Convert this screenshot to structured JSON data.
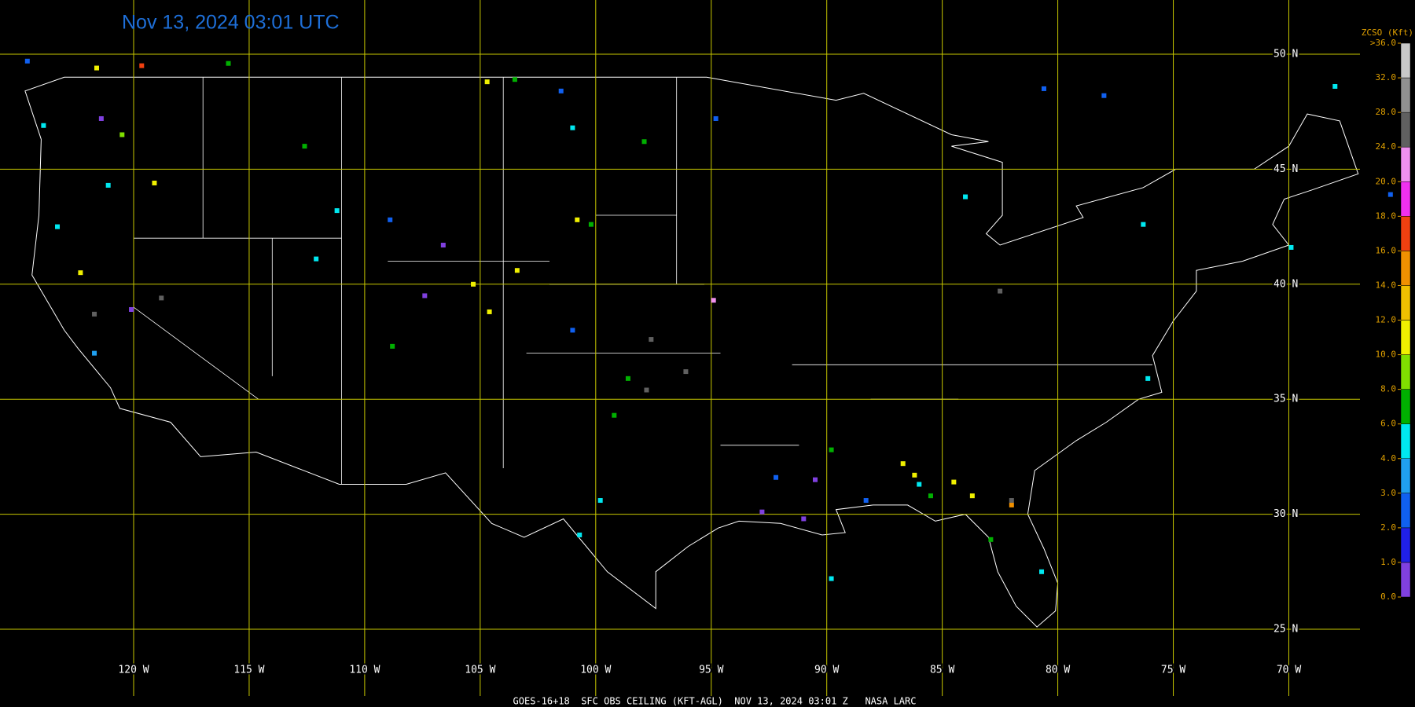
{
  "title": "Nov 13, 2024 03:01 UTC",
  "footer": "GOES-16+18  SFC OBS CEILING (KFT-AGL)  NOV 13, 2024 03:01 Z   NASA LARC",
  "grid": {
    "lat": [
      {
        "value": 50,
        "label": "50 N"
      },
      {
        "value": 45,
        "label": "45 N"
      },
      {
        "value": 40,
        "label": "40 N"
      },
      {
        "value": 35,
        "label": "35 N"
      },
      {
        "value": 30,
        "label": "30 N"
      },
      {
        "value": 25,
        "label": "25 N"
      }
    ],
    "lon": [
      {
        "value": -120,
        "label": "120 W"
      },
      {
        "value": -115,
        "label": "115 W"
      },
      {
        "value": -110,
        "label": "110 W"
      },
      {
        "value": -105,
        "label": "105 W"
      },
      {
        "value": -100,
        "label": "100 W"
      },
      {
        "value": -95,
        "label": "95 W"
      },
      {
        "value": -90,
        "label": "90 W"
      },
      {
        "value": -85,
        "label": "85 W"
      },
      {
        "value": -80,
        "label": "80 W"
      },
      {
        "value": -75,
        "label": "75 W"
      },
      {
        "value": -70,
        "label": "70 W"
      }
    ]
  },
  "colorbar": {
    "title": "ZCSO (Kft)",
    "ticks": [
      {
        "value": 36,
        "label": ">36.0"
      },
      {
        "value": 32,
        "label": "32.0"
      },
      {
        "value": 28,
        "label": "28.0"
      },
      {
        "value": 24,
        "label": "24.0"
      },
      {
        "value": 20,
        "label": "20.0"
      },
      {
        "value": 18,
        "label": "18.0"
      },
      {
        "value": 16,
        "label": "16.0"
      },
      {
        "value": 14,
        "label": "14.0"
      },
      {
        "value": 12,
        "label": "12.0"
      },
      {
        "value": 10,
        "label": "10.0"
      },
      {
        "value": 8,
        "label": "8.0"
      },
      {
        "value": 6,
        "label": "6.0"
      },
      {
        "value": 4,
        "label": "4.0"
      },
      {
        "value": 3,
        "label": "3.0"
      },
      {
        "value": 2,
        "label": "2.0"
      },
      {
        "value": 1,
        "label": "1.0"
      },
      {
        "value": 0,
        "label": "0.0"
      }
    ],
    "colors": [
      "#8040e0",
      "#2020e8",
      "#1060f0",
      "#20a0f0",
      "#00e8f0",
      "#00b000",
      "#80e000",
      "#f0f000",
      "#f0c000",
      "#f09000",
      "#f04010",
      "#f030f0",
      "#f090f0",
      "#606060",
      "#909090",
      "#c8c8c8"
    ]
  },
  "stations": [
    {
      "lon": -119.65,
      "lat": 49.5,
      "ceiling": 17
    },
    {
      "lon": -121.6,
      "lat": 49.4,
      "ceiling": 11
    },
    {
      "lon": -124.6,
      "lat": 49.7,
      "ceiling": 2.5
    },
    {
      "lon": -123.9,
      "lat": 46.9,
      "ceiling": 5
    },
    {
      "lon": -121.4,
      "lat": 47.2,
      "ceiling": 0.5
    },
    {
      "lon": -120.5,
      "lat": 46.5,
      "ceiling": 9
    },
    {
      "lon": -119.1,
      "lat": 44.4,
      "ceiling": 11
    },
    {
      "lon": -121.1,
      "lat": 44.3,
      "ceiling": 5
    },
    {
      "lon": -123.3,
      "lat": 42.5,
      "ceiling": 5
    },
    {
      "lon": -122.3,
      "lat": 40.5,
      "ceiling": 11
    },
    {
      "lon": -121.7,
      "lat": 38.7,
      "ceiling": 26
    },
    {
      "lon": -118.8,
      "lat": 39.4,
      "ceiling": 26
    },
    {
      "lon": -120.1,
      "lat": 38.9,
      "ceiling": 0.5
    },
    {
      "lon": -121.7,
      "lat": 37.0,
      "ceiling": 3
    },
    {
      "lon": -115.9,
      "lat": 49.6,
      "ceiling": 7
    },
    {
      "lon": -112.6,
      "lat": 46.0,
      "ceiling": 7
    },
    {
      "lon": -111.2,
      "lat": 43.2,
      "ceiling": 5
    },
    {
      "lon": -112.1,
      "lat": 41.1,
      "ceiling": 5
    },
    {
      "lon": -106.6,
      "lat": 41.7,
      "ceiling": 0.5
    },
    {
      "lon": -108.9,
      "lat": 42.8,
      "ceiling": 2.5
    },
    {
      "lon": -107.4,
      "lat": 39.5,
      "ceiling": 0.5
    },
    {
      "lon": -105.3,
      "lat": 40.0,
      "ceiling": 11
    },
    {
      "lon": -104.6,
      "lat": 38.8,
      "ceiling": 11
    },
    {
      "lon": -103.4,
      "lat": 40.6,
      "ceiling": 11
    },
    {
      "lon": -108.8,
      "lat": 37.3,
      "ceiling": 7
    },
    {
      "lon": -104.7,
      "lat": 48.8,
      "ceiling": 11
    },
    {
      "lon": -103.5,
      "lat": 48.9,
      "ceiling": 7
    },
    {
      "lon": -101.5,
      "lat": 48.4,
      "ceiling": 2.5
    },
    {
      "lon": -101.0,
      "lat": 46.8,
      "ceiling": 5
    },
    {
      "lon": -97.9,
      "lat": 46.2,
      "ceiling": 7
    },
    {
      "lon": -100.8,
      "lat": 42.8,
      "ceiling": 11
    },
    {
      "lon": -100.2,
      "lat": 42.6,
      "ceiling": 7
    },
    {
      "lon": -97.6,
      "lat": 37.6,
      "ceiling": 26
    },
    {
      "lon": -101.0,
      "lat": 38.0,
      "ceiling": 2.5
    },
    {
      "lon": -98.6,
      "lat": 35.9,
      "ceiling": 7
    },
    {
      "lon": -97.8,
      "lat": 35.4,
      "ceiling": 26
    },
    {
      "lon": -96.1,
      "lat": 36.2,
      "ceiling": 26
    },
    {
      "lon": -99.2,
      "lat": 34.3,
      "ceiling": 7
    },
    {
      "lon": -99.8,
      "lat": 30.6,
      "ceiling": 5
    },
    {
      "lon": -100.7,
      "lat": 29.1,
      "ceiling": 5
    },
    {
      "lon": -94.9,
      "lat": 39.3,
      "ceiling": 22
    },
    {
      "lon": -94.8,
      "lat": 47.2,
      "ceiling": 2.5
    },
    {
      "lon": -80.6,
      "lat": 48.5,
      "ceiling": 2.5
    },
    {
      "lon": -78.0,
      "lat": 48.2,
      "ceiling": 2.5
    },
    {
      "lon": -84.0,
      "lat": 43.8,
      "ceiling": 5
    },
    {
      "lon": -82.5,
      "lat": 39.7,
      "ceiling": 26
    },
    {
      "lon": -76.3,
      "lat": 42.6,
      "ceiling": 5
    },
    {
      "lon": -69.9,
      "lat": 41.6,
      "ceiling": 5
    },
    {
      "lon": -68.0,
      "lat": 48.6,
      "ceiling": 5
    },
    {
      "lon": -65.6,
      "lat": 43.9,
      "ceiling": 2.5
    },
    {
      "lon": -76.1,
      "lat": 35.9,
      "ceiling": 5
    },
    {
      "lon": -92.8,
      "lat": 30.1,
      "ceiling": 0.5
    },
    {
      "lon": -92.2,
      "lat": 31.6,
      "ceiling": 2.5
    },
    {
      "lon": -89.8,
      "lat": 32.8,
      "ceiling": 7
    },
    {
      "lon": -90.5,
      "lat": 31.5,
      "ceiling": 0.5
    },
    {
      "lon": -86.7,
      "lat": 32.2,
      "ceiling": 11
    },
    {
      "lon": -86.2,
      "lat": 31.7,
      "ceiling": 11
    },
    {
      "lon": -84.5,
      "lat": 31.4,
      "ceiling": 11
    },
    {
      "lon": -83.7,
      "lat": 30.8,
      "ceiling": 11
    },
    {
      "lon": -85.5,
      "lat": 30.8,
      "ceiling": 7
    },
    {
      "lon": -82.0,
      "lat": 30.4,
      "ceiling": 15
    },
    {
      "lon": -82.0,
      "lat": 30.6,
      "ceiling": 26
    },
    {
      "lon": -82.9,
      "lat": 28.9,
      "ceiling": 7
    },
    {
      "lon": -80.7,
      "lat": 27.5,
      "ceiling": 5
    },
    {
      "lon": -89.8,
      "lat": 27.2,
      "ceiling": 5
    },
    {
      "lon": -86.0,
      "lat": 31.3,
      "ceiling": 5
    },
    {
      "lon": -88.3,
      "lat": 30.6,
      "ceiling": 2.5
    },
    {
      "lon": -91.0,
      "lat": 29.8,
      "ceiling": 0.5
    }
  ]
}
